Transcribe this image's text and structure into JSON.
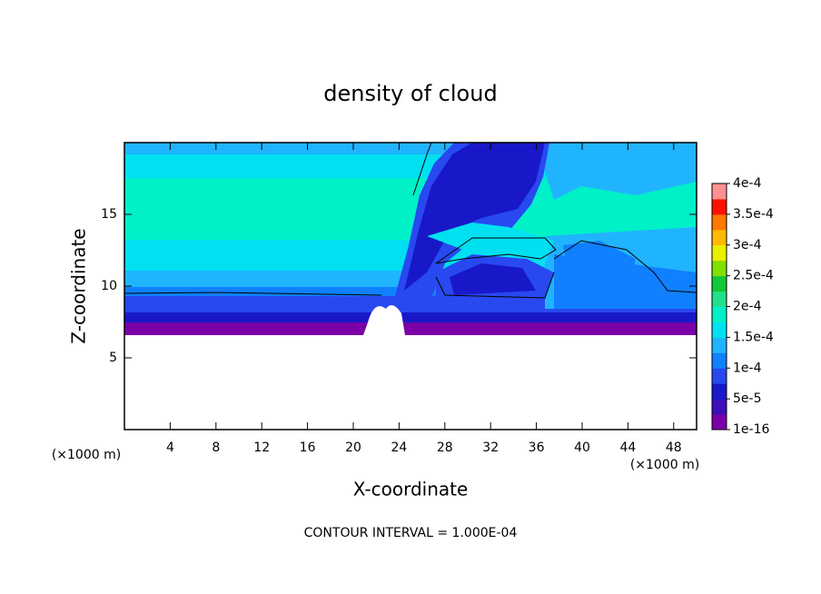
{
  "chart_data": {
    "type": "contour",
    "title": "density of cloud",
    "x_label": "X-coordinate",
    "y_label": "Z-coordinate",
    "x_unit": "(×1000 m)",
    "y_unit": "(×1000 m)",
    "xlim": [
      0,
      50
    ],
    "ylim": [
      0,
      20
    ],
    "xticks": [
      4,
      8,
      12,
      16,
      20,
      24,
      28,
      32,
      36,
      40,
      44,
      48
    ],
    "yticks": [
      5,
      10,
      15
    ],
    "clim": [
      1e-16,
      0.0004
    ],
    "colorbar_ticks": [
      {
        "value": 1e-16,
        "label": "1e-16"
      },
      {
        "value": 5e-05,
        "label": "5e-5"
      },
      {
        "value": 0.0001,
        "label": "1e-4"
      },
      {
        "value": 0.00015,
        "label": "1.5e-4"
      },
      {
        "value": 0.0002,
        "label": "2e-4"
      },
      {
        "value": 0.00025,
        "label": "2.5e-4"
      },
      {
        "value": 0.0003,
        "label": "3e-4"
      },
      {
        "value": 0.00035,
        "label": "3.5e-4"
      },
      {
        "value": 0.0004,
        "label": "4e-4"
      }
    ],
    "colors": [
      "#7a00a8",
      "#3c10b8",
      "#1818c8",
      "#2848f0",
      "#1080ff",
      "#20b4ff",
      "#00e0f0",
      "#00f0c8",
      "#20e08c",
      "#10c838",
      "#80e000",
      "#e8f000",
      "#ffb800",
      "#ff7800",
      "#ff1000",
      "#ff9090"
    ],
    "footnote": "CONTOUR INTERVAL = 1.000E-04"
  }
}
